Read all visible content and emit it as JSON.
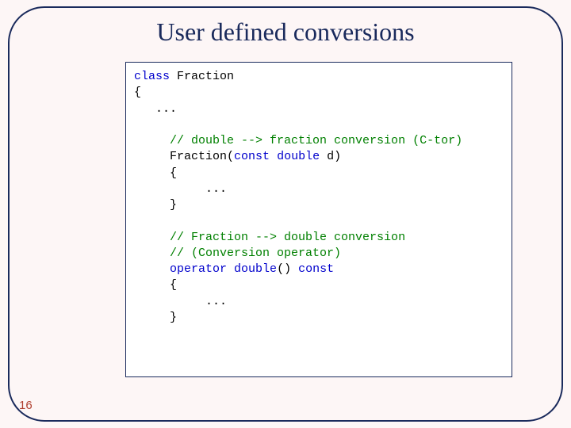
{
  "slide": {
    "background_color": "#fdf6f6",
    "frame_color": "#1a2a5c",
    "frame_radius": 46,
    "title": "User defined conversions",
    "title_color": "#1a2a5c",
    "title_fontsize": 32,
    "page_number": "16",
    "page_number_color": "#b04030"
  },
  "code_box": {
    "background": "#ffffff",
    "border_color": "#1a2a5c",
    "font_family": "Consolas, Courier New, monospace",
    "font_size": 15,
    "keyword_color": "#0000cc",
    "comment_color": "#008000",
    "text_color": "#000000",
    "tokens": [
      {
        "t": "class",
        "c": "kw"
      },
      {
        "t": " Fraction\n"
      },
      {
        "t": "{\n"
      },
      {
        "t": "   ...\n"
      },
      {
        "t": "\n"
      },
      {
        "t": "     ",
        "c": null
      },
      {
        "t": "// double --> fraction conversion (C-tor)",
        "c": "cm"
      },
      {
        "t": "\n"
      },
      {
        "t": "     Fraction("
      },
      {
        "t": "const",
        "c": "kw"
      },
      {
        "t": " "
      },
      {
        "t": "double",
        "c": "kw"
      },
      {
        "t": " d)\n"
      },
      {
        "t": "     {\n"
      },
      {
        "t": "          ...\n"
      },
      {
        "t": "     }\n"
      },
      {
        "t": "\n"
      },
      {
        "t": "     "
      },
      {
        "t": "// Fraction --> double conversion",
        "c": "cm"
      },
      {
        "t": "\n"
      },
      {
        "t": "     "
      },
      {
        "t": "// (Conversion operator)",
        "c": "cm"
      },
      {
        "t": "\n"
      },
      {
        "t": "     "
      },
      {
        "t": "operator",
        "c": "kw"
      },
      {
        "t": " "
      },
      {
        "t": "double",
        "c": "kw"
      },
      {
        "t": "() "
      },
      {
        "t": "const",
        "c": "kw"
      },
      {
        "t": "\n"
      },
      {
        "t": "     {\n"
      },
      {
        "t": "          ...\n"
      },
      {
        "t": "     }"
      }
    ]
  }
}
